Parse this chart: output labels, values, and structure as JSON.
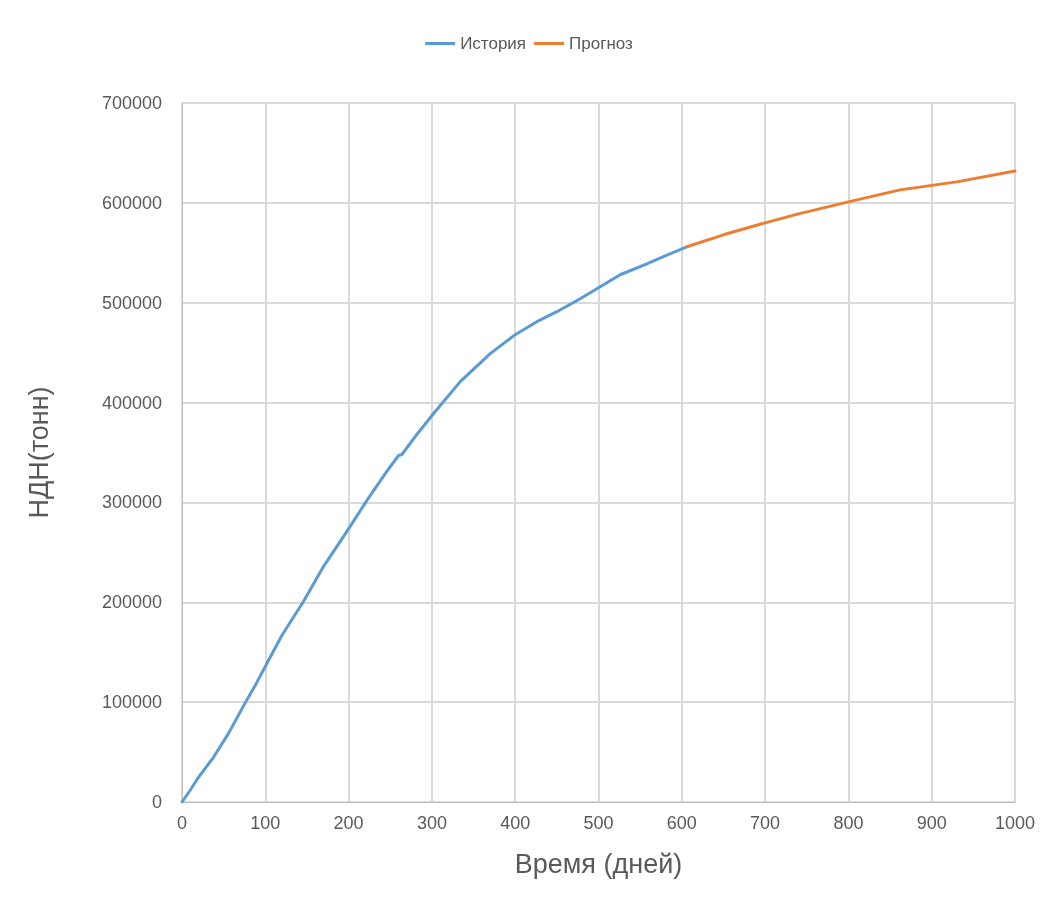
{
  "chart_data": {
    "type": "line",
    "xlabel": "Время (дней)",
    "ylabel": "НДН(тонн)",
    "xlim": [
      0,
      1000
    ],
    "xticks": [
      0,
      100,
      200,
      300,
      400,
      500,
      600,
      700,
      800,
      900,
      1000
    ],
    "ylim": [
      0,
      700000
    ],
    "yticks": [
      0,
      100000,
      200000,
      300000,
      400000,
      500000,
      600000,
      700000
    ],
    "grid": true,
    "legend": "top",
    "marker": "none",
    "line_style": "solid",
    "series": [
      {
        "name": "История",
        "color": "#5b9bd5",
        "x": [
          0,
          10,
          20,
          38,
          56,
          75,
          88,
          90,
          102,
          120,
          146,
          170,
          198,
          222,
          245,
          260,
          264,
          280,
          302,
          334,
          370,
          400,
          426,
          450,
          478,
          500,
          526,
          558,
          580,
          606
        ],
        "values": [
          0,
          12000,
          25000,
          45000,
          69000,
          98000,
          117000,
          120000,
          139000,
          167000,
          201000,
          236000,
          271000,
          302000,
          330000,
          347000,
          348000,
          366000,
          389000,
          421000,
          449000,
          468000,
          481000,
          491000,
          504000,
          515000,
          528000,
          539000,
          547000,
          556000
        ]
      },
      {
        "name": "Прогноз",
        "color": "#ed7d31",
        "x": [
          606,
          650,
          700,
          740,
          800,
          862,
          930,
          1000
        ],
        "values": [
          556000,
          568000,
          580000,
          589000,
          601000,
          613000,
          621000,
          632000
        ]
      }
    ]
  }
}
